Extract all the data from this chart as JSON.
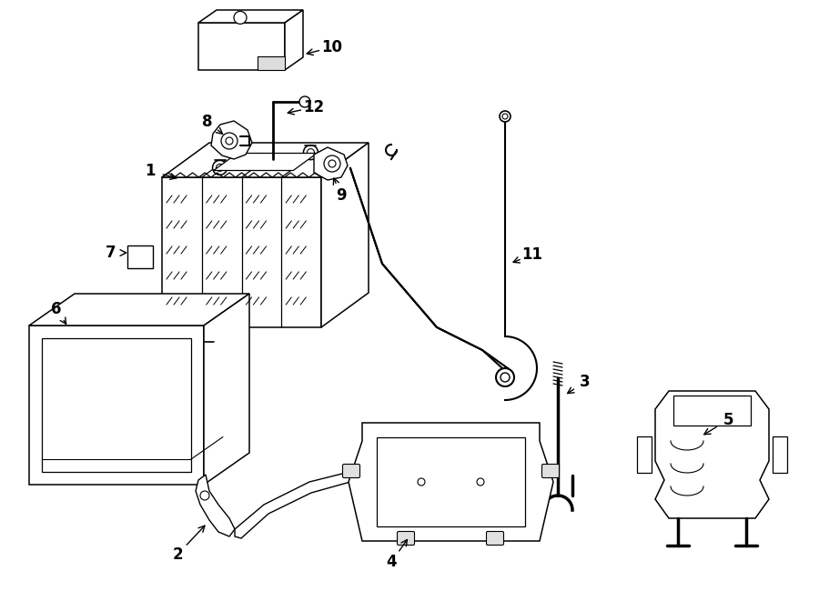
{
  "bg_color": "#ffffff",
  "line_color": "#000000",
  "fig_width": 9.0,
  "fig_height": 6.61,
  "dpi": 100,
  "lw": 1.1,
  "label_fontsize": 12
}
